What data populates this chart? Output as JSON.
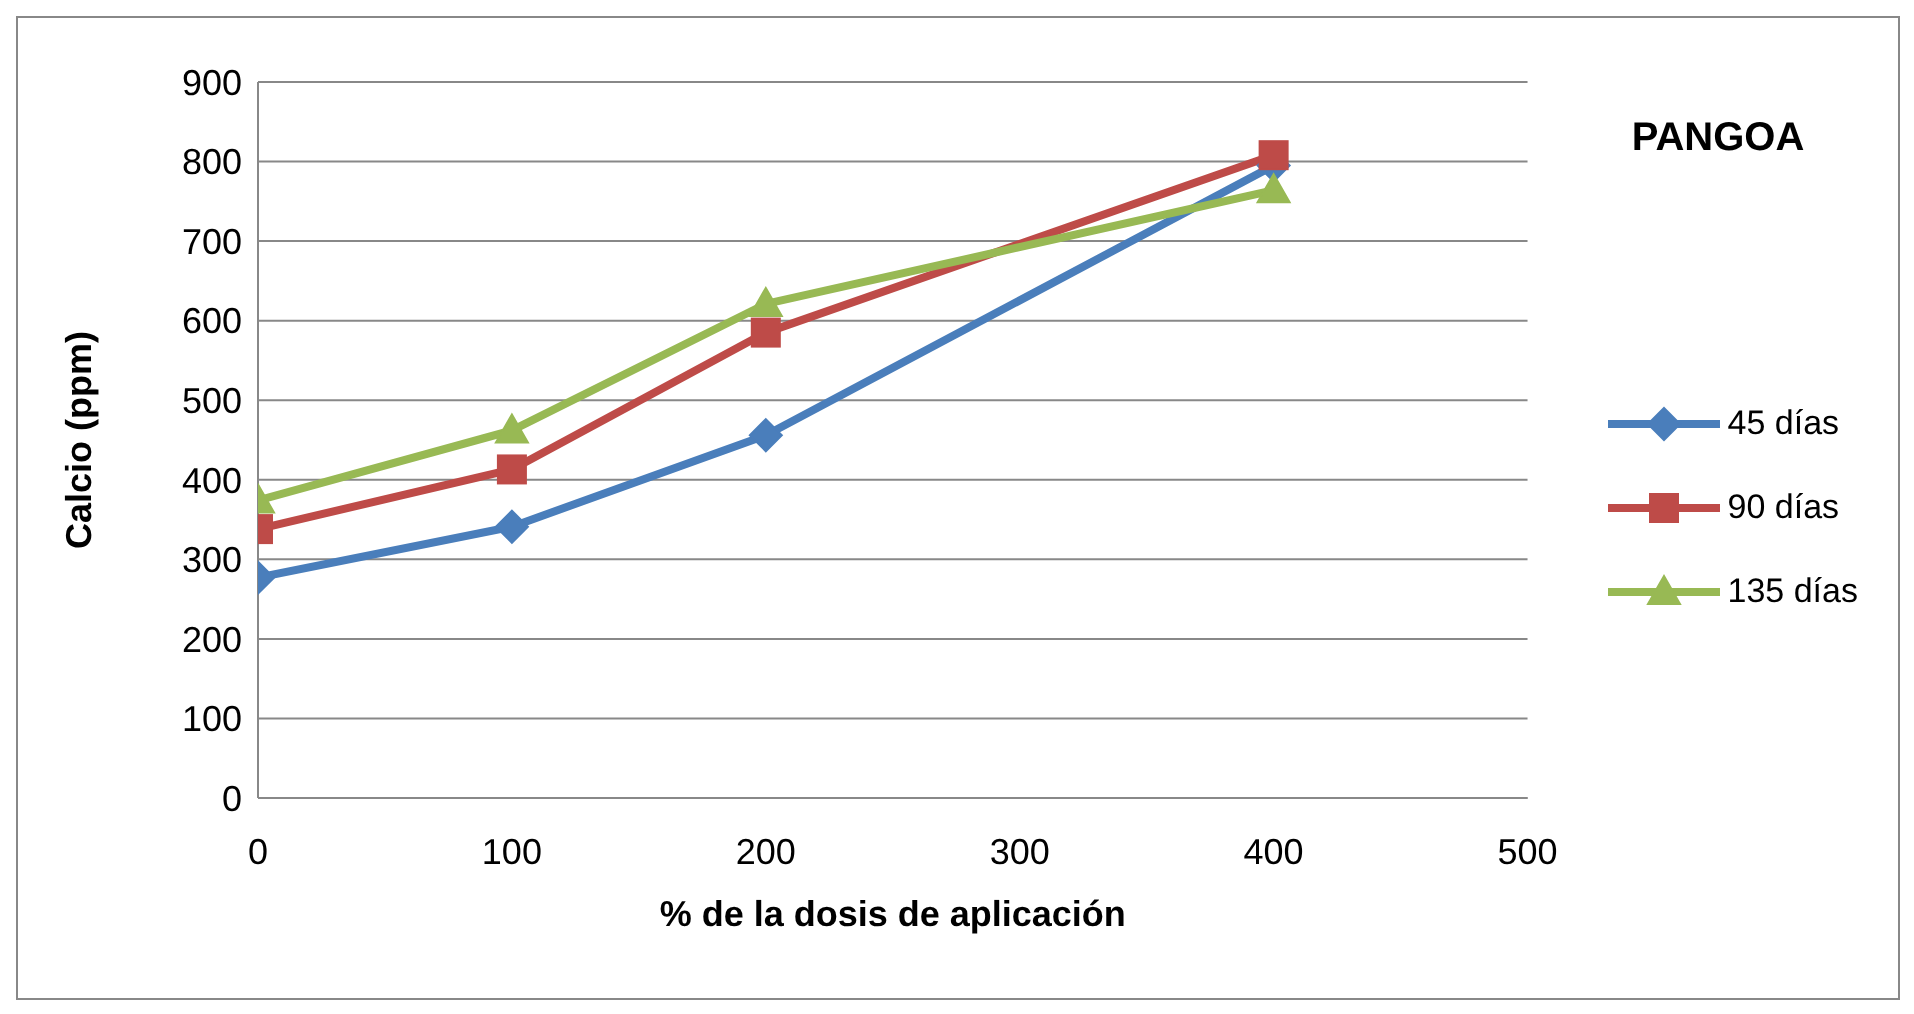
{
  "chart_data": {
    "type": "line",
    "title": "PANGOA",
    "xlabel": "% de la dosis de aplicación",
    "ylabel": "Calcio (ppm)",
    "x": [
      0,
      100,
      200,
      400
    ],
    "series": [
      {
        "name": "45 días",
        "color": "#4a7ebb",
        "marker": "diamond",
        "values": [
          277,
          341,
          456,
          795
        ]
      },
      {
        "name": "90 días",
        "color": "#be4b48",
        "marker": "square",
        "values": [
          338,
          413,
          585,
          808
        ]
      },
      {
        "name": "135 días",
        "color": "#98b954",
        "marker": "triangle",
        "values": [
          374,
          462,
          621,
          764
        ]
      }
    ],
    "xlim": [
      0,
      500
    ],
    "xticks": [
      0,
      100,
      200,
      300,
      400,
      500
    ],
    "ylim": [
      0,
      900
    ],
    "yticks": [
      0,
      100,
      200,
      300,
      400,
      500,
      600,
      700,
      800,
      900
    ],
    "grid": "y",
    "legend": "right"
  }
}
